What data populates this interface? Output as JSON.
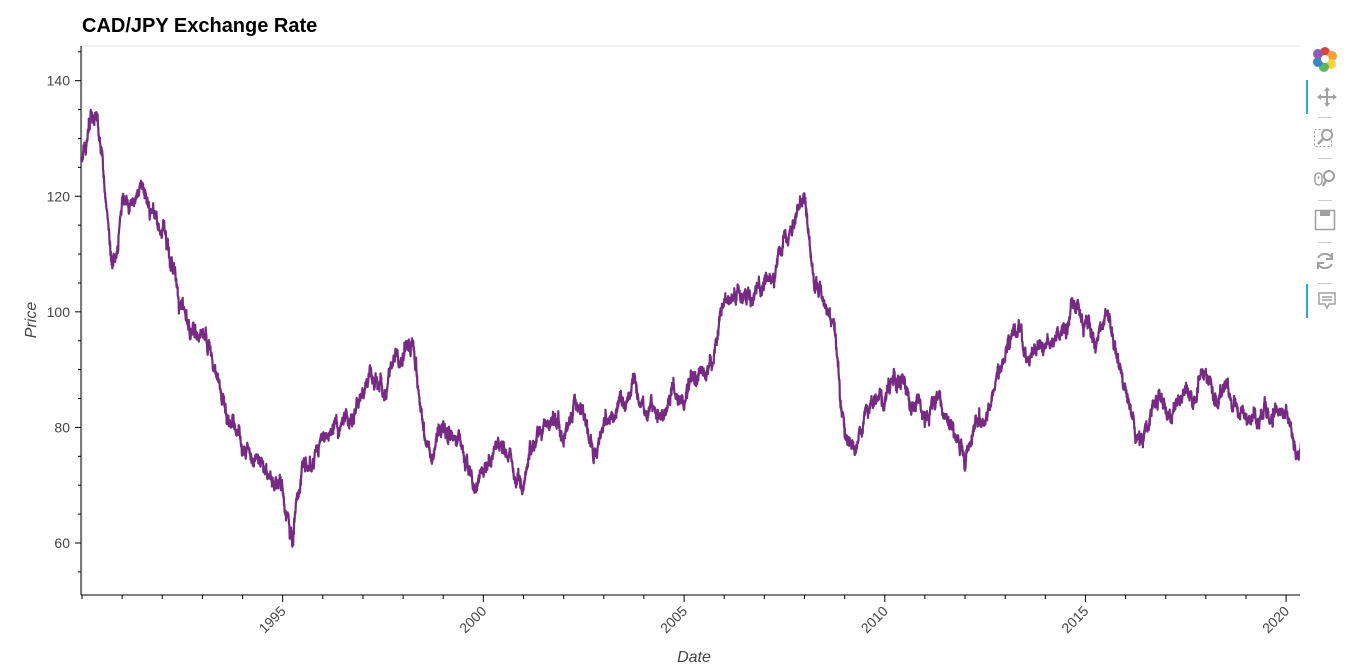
{
  "chart_data": {
    "type": "line",
    "title": "CAD/JPY Exchange Rate",
    "xlabel": "Date",
    "ylabel": "Price",
    "x_ticks": [
      "1995",
      "2000",
      "2005",
      "2010",
      "2015",
      "2020"
    ],
    "y_ticks": [
      60,
      80,
      100,
      120,
      140
    ],
    "xlim": [
      "1990-01-01",
      "2020-06-30"
    ],
    "ylim": [
      51,
      146
    ],
    "color": "#762a83",
    "grid": false,
    "series": [
      {
        "x": [
          "1990-01-01",
          "1990-04-01",
          "1990-07-01",
          "1990-10-01",
          "1991-01-01",
          "1991-04-01",
          "1991-07-01",
          "1991-10-01",
          "1992-01-01",
          "1992-04-01",
          "1992-07-01",
          "1992-10-01",
          "1993-01-01",
          "1993-04-01",
          "1993-07-01",
          "1993-10-01",
          "1994-01-01",
          "1994-04-01",
          "1994-07-01",
          "1994-10-01",
          "1995-01-01",
          "1995-04-01",
          "1995-07-01",
          "1995-10-01",
          "1996-01-01",
          "1996-04-01",
          "1996-07-01",
          "1996-10-01",
          "1997-01-01",
          "1997-04-01",
          "1997-07-01",
          "1997-10-01",
          "1998-01-01",
          "1998-04-01",
          "1998-07-01",
          "1998-10-01",
          "1999-01-01",
          "1999-04-01",
          "1999-07-01",
          "1999-10-01",
          "2000-01-01",
          "2000-04-01",
          "2000-07-01",
          "2000-10-01",
          "2001-01-01",
          "2001-04-01",
          "2001-07-01",
          "2001-10-01",
          "2002-01-01",
          "2002-04-01",
          "2002-07-01",
          "2002-10-01",
          "2003-01-01",
          "2003-04-01",
          "2003-07-01",
          "2003-10-01",
          "2004-01-01",
          "2004-04-01",
          "2004-07-01",
          "2004-10-01",
          "2005-01-01",
          "2005-04-01",
          "2005-07-01",
          "2005-10-01",
          "2006-01-01",
          "2006-04-01",
          "2006-07-01",
          "2006-10-01",
          "2007-01-01",
          "2007-04-01",
          "2007-07-01",
          "2007-10-01",
          "2008-01-01",
          "2008-04-01",
          "2008-07-01",
          "2008-10-01",
          "2009-01-01",
          "2009-04-01",
          "2009-07-01",
          "2009-10-01",
          "2010-01-01",
          "2010-04-01",
          "2010-07-01",
          "2010-10-01",
          "2011-01-01",
          "2011-04-01",
          "2011-07-01",
          "2011-10-01",
          "2012-01-01",
          "2012-04-01",
          "2012-07-01",
          "2012-10-01",
          "2013-01-01",
          "2013-04-01",
          "2013-07-01",
          "2013-10-01",
          "2014-01-01",
          "2014-04-01",
          "2014-07-01",
          "2014-10-01",
          "2015-01-01",
          "2015-04-01",
          "2015-07-01",
          "2015-10-01",
          "2016-01-01",
          "2016-04-01",
          "2016-07-01",
          "2016-10-01",
          "2017-01-01",
          "2017-04-01",
          "2017-07-01",
          "2017-10-01",
          "2018-01-01",
          "2018-04-01",
          "2018-07-01",
          "2018-10-01",
          "2019-01-01",
          "2019-04-01",
          "2019-07-01",
          "2019-10-01",
          "2020-01-01",
          "2020-04-01",
          "2020-06-30"
        ],
        "y": [
          126,
          135,
          129,
          107,
          118,
          120,
          122,
          117,
          112,
          108,
          103,
          97,
          98,
          92,
          84,
          80,
          75,
          73,
          72,
          70,
          68,
          60,
          75,
          74,
          77,
          79,
          80,
          82,
          86,
          90,
          87,
          89,
          92,
          95,
          80,
          75,
          80,
          78,
          75,
          72,
          74,
          76,
          75,
          73,
          71,
          76,
          80,
          82,
          78,
          84,
          82,
          77,
          79,
          82,
          84,
          87,
          84,
          83,
          80,
          86,
          84,
          88,
          90,
          95,
          101,
          102,
          103,
          104,
          105,
          106,
          112,
          115,
          120,
          105,
          103,
          96,
          80,
          75,
          82,
          86,
          84,
          88,
          86,
          83,
          82,
          84,
          83,
          80,
          76,
          80,
          83,
          86,
          92,
          98,
          93,
          94,
          95,
          97,
          98,
          102,
          98,
          94,
          100,
          92,
          85,
          80,
          80,
          86,
          84,
          83,
          88,
          86,
          88,
          84,
          85,
          84,
          82,
          83,
          82,
          82,
          83,
          77,
          80
        ]
      }
    ]
  },
  "toolbar": {
    "tools": [
      "bokeh-logo",
      "pan",
      "box-zoom",
      "wheel-zoom",
      "save",
      "reset",
      "hover"
    ]
  }
}
